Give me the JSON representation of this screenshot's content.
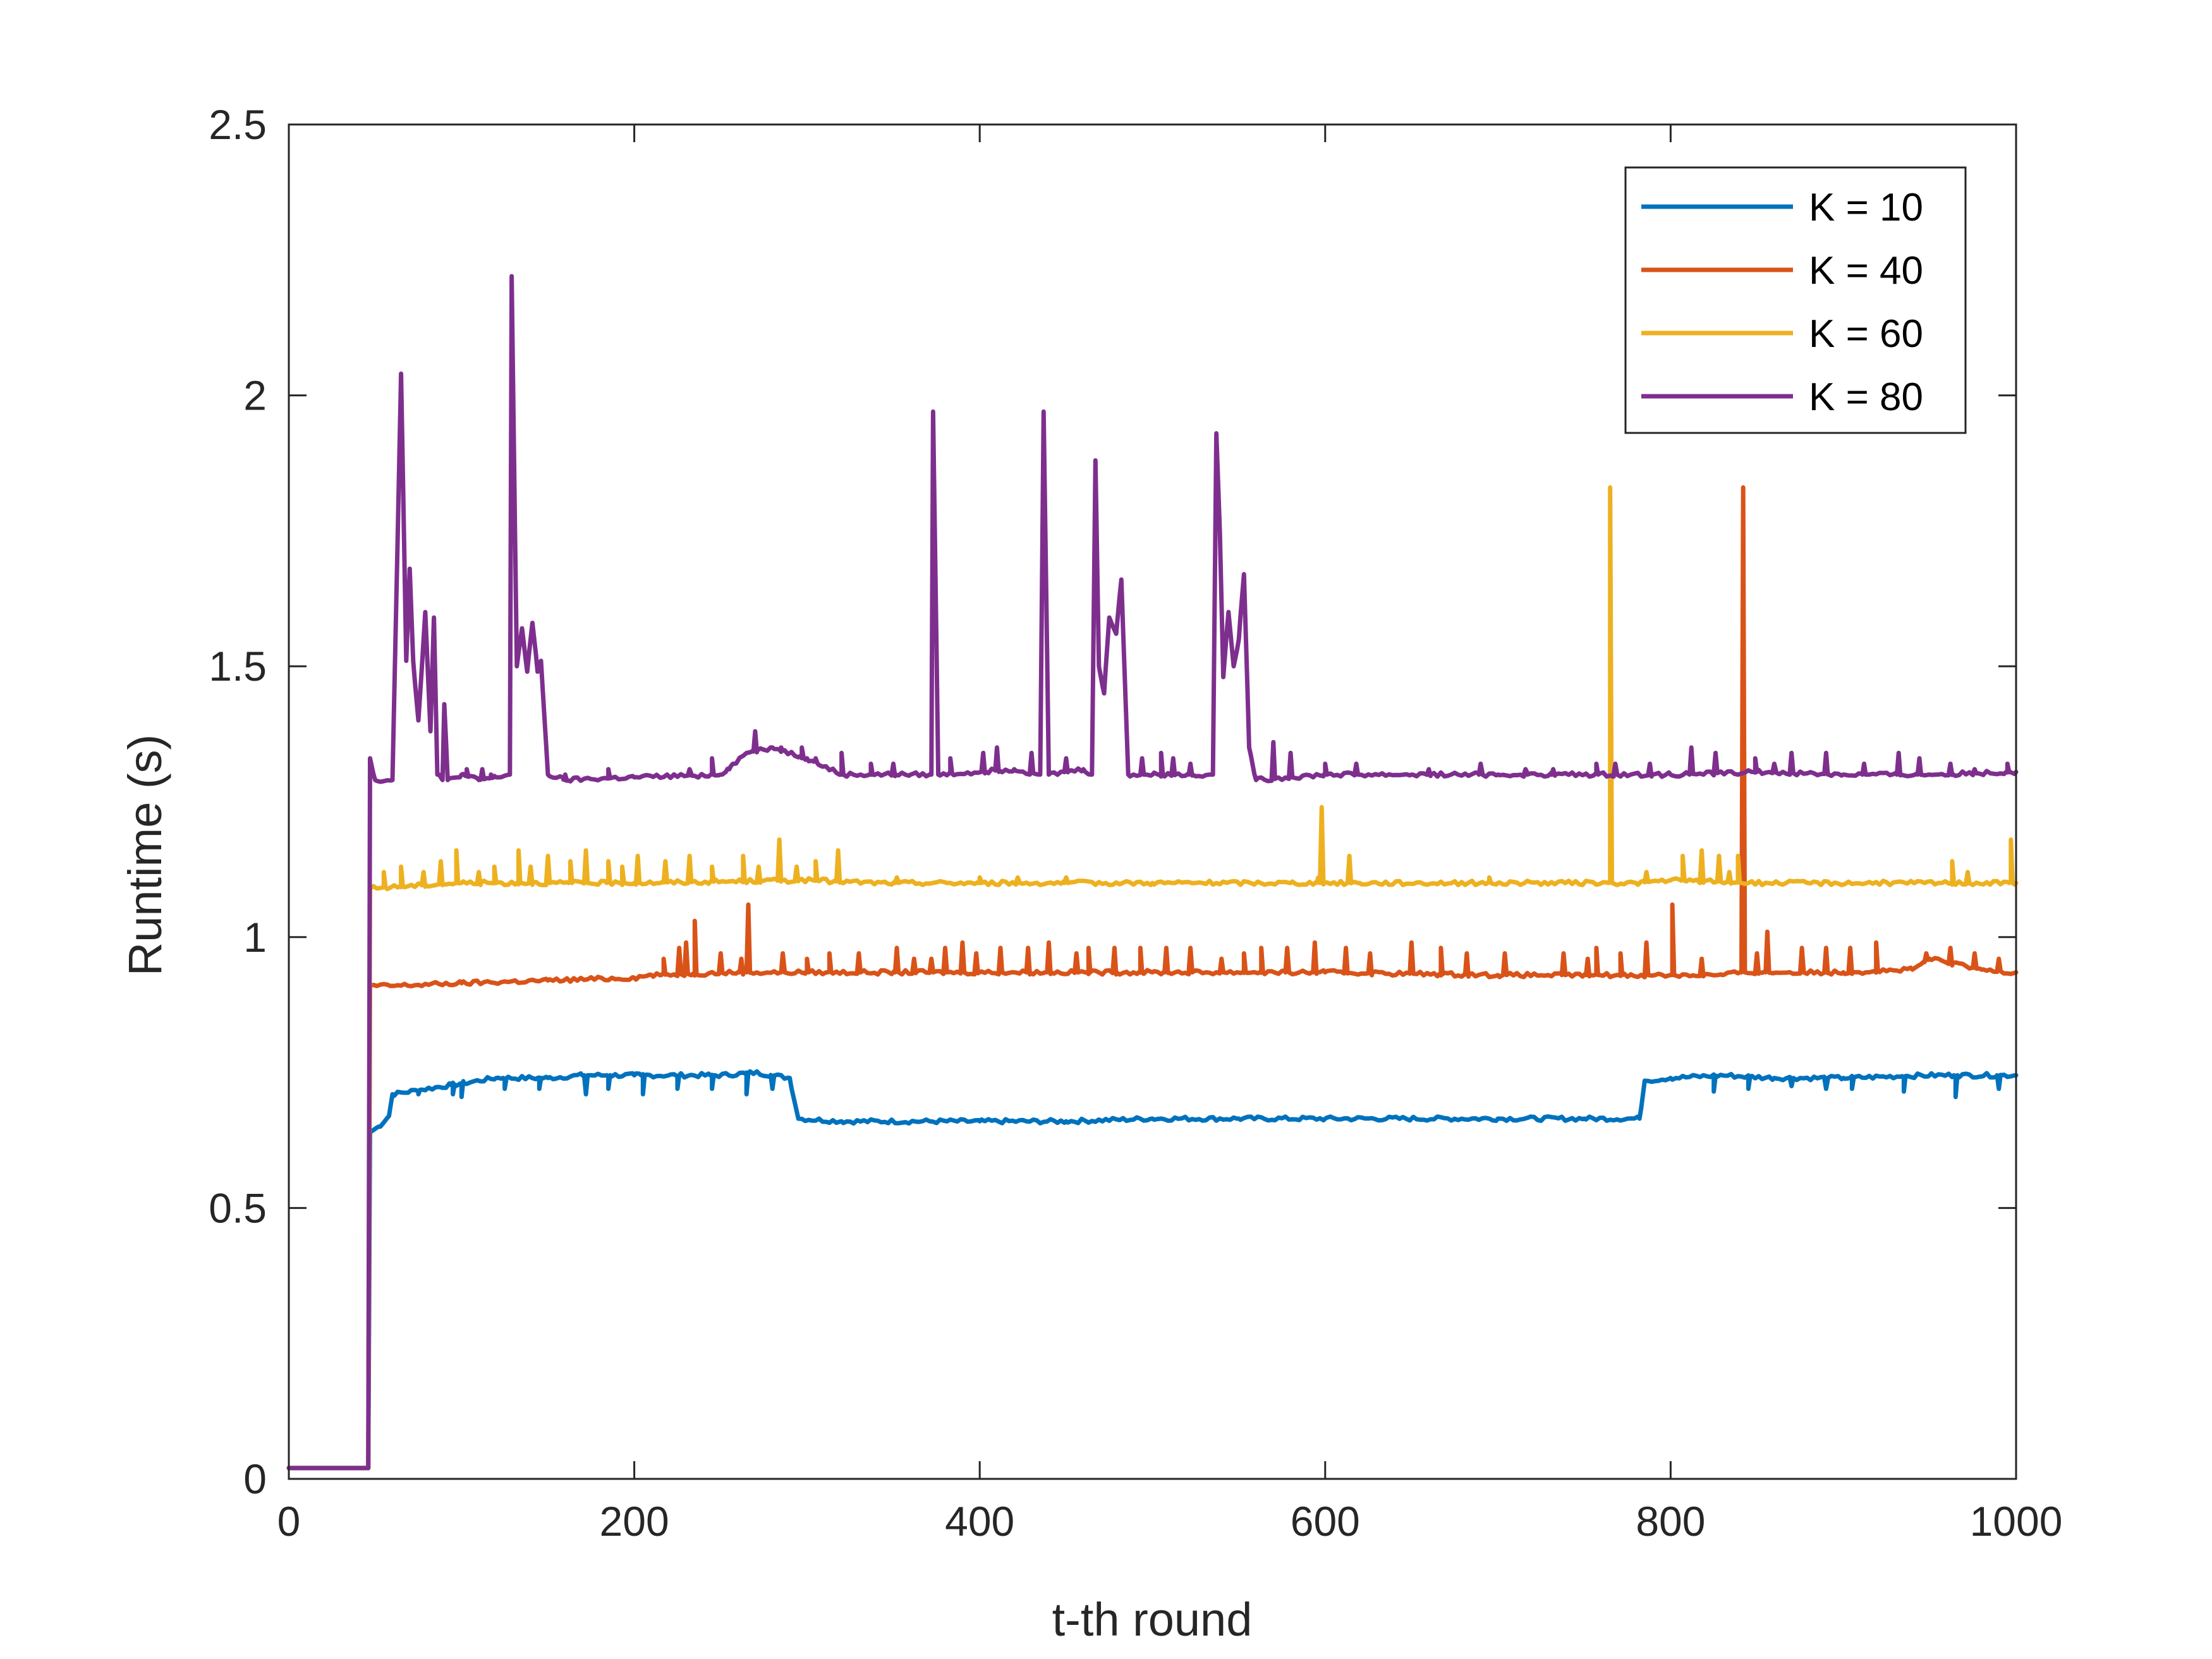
{
  "chart_data": {
    "type": "line",
    "title": "",
    "xlabel": "t-th round",
    "ylabel": "Runtime (s)",
    "xlim": [
      0,
      1000
    ],
    "ylim": [
      0,
      2.5
    ],
    "xticks": [
      0,
      200,
      400,
      600,
      800,
      1000
    ],
    "yticks": [
      0,
      0.5,
      1,
      1.5,
      2,
      2.5
    ],
    "xtick_labels": [
      "0",
      "200",
      "400",
      "600",
      "800",
      "1000"
    ],
    "ytick_labels": [
      "0",
      "0.5",
      "1",
      "1.5",
      "2",
      "2.5"
    ],
    "grid": false,
    "legend_position": "top-right",
    "series": [
      {
        "name": "K = 10",
        "color": "#0072BD",
        "points": [
          [
            0,
            0.02
          ],
          [
            46,
            0.02
          ],
          [
            47,
            0.64
          ],
          [
            52,
            0.65
          ],
          [
            58,
            0.67
          ],
          [
            60,
            0.71
          ],
          [
            80,
            0.72
          ],
          [
            100,
            0.73
          ],
          [
            120,
            0.74
          ],
          [
            150,
            0.74
          ],
          [
            170,
            0.745
          ],
          [
            200,
            0.745
          ],
          [
            220,
            0.745
          ],
          [
            250,
            0.745
          ],
          [
            270,
            0.75
          ],
          [
            290,
            0.74
          ],
          [
            295,
            0.665
          ],
          [
            320,
            0.66
          ],
          [
            400,
            0.66
          ],
          [
            450,
            0.66
          ],
          [
            500,
            0.665
          ],
          [
            550,
            0.665
          ],
          [
            600,
            0.665
          ],
          [
            650,
            0.665
          ],
          [
            700,
            0.665
          ],
          [
            750,
            0.665
          ],
          [
            782,
            0.665
          ],
          [
            785,
            0.735
          ],
          [
            800,
            0.74
          ],
          [
            830,
            0.745
          ],
          [
            860,
            0.74
          ],
          [
            900,
            0.74
          ],
          [
            950,
            0.745
          ],
          [
            1000,
            0.745
          ]
        ],
        "dips": [
          [
            75,
            0.71
          ],
          [
            95,
            0.71
          ],
          [
            100,
            0.705
          ],
          [
            125,
            0.72
          ],
          [
            145,
            0.72
          ],
          [
            172,
            0.71
          ],
          [
            185,
            0.72
          ],
          [
            205,
            0.71
          ],
          [
            225,
            0.72
          ],
          [
            245,
            0.72
          ],
          [
            265,
            0.71
          ],
          [
            280,
            0.72
          ],
          [
            825,
            0.715
          ],
          [
            845,
            0.72
          ],
          [
            870,
            0.725
          ],
          [
            890,
            0.72
          ],
          [
            905,
            0.72
          ],
          [
            935,
            0.715
          ],
          [
            965,
            0.705
          ],
          [
            990,
            0.72
          ]
        ]
      },
      {
        "name": "K = 40",
        "color": "#D95319",
        "points": [
          [
            0,
            0.02
          ],
          [
            46,
            0.02
          ],
          [
            47,
            0.91
          ],
          [
            60,
            0.91
          ],
          [
            100,
            0.915
          ],
          [
            150,
            0.92
          ],
          [
            200,
            0.925
          ],
          [
            210,
            0.93
          ],
          [
            260,
            0.935
          ],
          [
            300,
            0.935
          ],
          [
            400,
            0.935
          ],
          [
            500,
            0.935
          ],
          [
            600,
            0.935
          ],
          [
            700,
            0.93
          ],
          [
            800,
            0.93
          ],
          [
            830,
            0.93
          ],
          [
            840,
            0.935
          ],
          [
            900,
            0.935
          ],
          [
            940,
            0.94
          ],
          [
            950,
            0.96
          ],
          [
            980,
            0.94
          ],
          [
            1000,
            0.935
          ]
        ],
        "spikes": [
          [
            217,
            0.96
          ],
          [
            226,
            0.98
          ],
          [
            230,
            0.99
          ],
          [
            235,
            1.03
          ],
          [
            250,
            0.97
          ],
          [
            262,
            0.96
          ],
          [
            266,
            1.06
          ],
          [
            286,
            0.97
          ],
          [
            300,
            0.96
          ],
          [
            313,
            0.97
          ],
          [
            330,
            0.97
          ],
          [
            352,
            0.98
          ],
          [
            362,
            0.96
          ],
          [
            372,
            0.96
          ],
          [
            380,
            0.98
          ],
          [
            390,
            0.99
          ],
          [
            398,
            0.97
          ],
          [
            412,
            0.98
          ],
          [
            428,
            0.98
          ],
          [
            440,
            0.99
          ],
          [
            456,
            0.97
          ],
          [
            463,
            0.98
          ],
          [
            478,
            0.98
          ],
          [
            493,
            0.98
          ],
          [
            508,
            0.98
          ],
          [
            522,
            0.98
          ],
          [
            540,
            0.96
          ],
          [
            553,
            0.97
          ],
          [
            563,
            0.98
          ],
          [
            578,
            0.98
          ],
          [
            594,
            0.99
          ],
          [
            612,
            0.98
          ],
          [
            626,
            0.97
          ],
          [
            650,
            0.99
          ],
          [
            667,
            0.98
          ],
          [
            682,
            0.97
          ],
          [
            704,
            0.97
          ],
          [
            738,
            0.97
          ],
          [
            752,
            0.96
          ],
          [
            757,
            0.98
          ],
          [
            771,
            0.97
          ],
          [
            786,
            0.99
          ],
          [
            801,
            1.06
          ],
          [
            818,
            0.96
          ],
          [
            842,
            1.83
          ],
          [
            850,
            0.97
          ],
          [
            856,
            1.01
          ],
          [
            876,
            0.98
          ],
          [
            890,
            0.98
          ],
          [
            904,
            0.98
          ],
          [
            919,
            0.99
          ],
          [
            948,
            0.97
          ],
          [
            962,
            0.98
          ],
          [
            976,
            0.97
          ],
          [
            990,
            0.96
          ]
        ]
      },
      {
        "name": "K = 60",
        "color": "#EDB120",
        "points": [
          [
            0,
            0.02
          ],
          [
            46,
            0.02
          ],
          [
            47,
            1.09
          ],
          [
            100,
            1.1
          ],
          [
            200,
            1.1
          ],
          [
            300,
            1.105
          ],
          [
            340,
            1.1
          ],
          [
            400,
            1.1
          ],
          [
            500,
            1.1
          ],
          [
            580,
            1.1
          ],
          [
            620,
            1.1
          ],
          [
            700,
            1.1
          ],
          [
            780,
            1.1
          ],
          [
            800,
            1.105
          ],
          [
            850,
            1.1
          ],
          [
            1000,
            1.1
          ]
        ],
        "spikes": [
          [
            55,
            1.12
          ],
          [
            65,
            1.13
          ],
          [
            78,
            1.12
          ],
          [
            88,
            1.14
          ],
          [
            97,
            1.16
          ],
          [
            110,
            1.12
          ],
          [
            119,
            1.13
          ],
          [
            133,
            1.16
          ],
          [
            140,
            1.13
          ],
          [
            150,
            1.15
          ],
          [
            163,
            1.14
          ],
          [
            172,
            1.16
          ],
          [
            185,
            1.14
          ],
          [
            193,
            1.13
          ],
          [
            202,
            1.15
          ],
          [
            218,
            1.14
          ],
          [
            232,
            1.15
          ],
          [
            245,
            1.13
          ],
          [
            263,
            1.15
          ],
          [
            272,
            1.13
          ],
          [
            284,
            1.18
          ],
          [
            294,
            1.13
          ],
          [
            305,
            1.14
          ],
          [
            318,
            1.16
          ],
          [
            352,
            1.11
          ],
          [
            400,
            1.11
          ],
          [
            422,
            1.11
          ],
          [
            450,
            1.11
          ],
          [
            596,
            1.11
          ],
          [
            598,
            1.24
          ],
          [
            614,
            1.15
          ],
          [
            695,
            1.11
          ],
          [
            765,
            1.83
          ],
          [
            786,
            1.12
          ],
          [
            807,
            1.15
          ],
          [
            818,
            1.16
          ],
          [
            828,
            1.15
          ],
          [
            834,
            1.12
          ],
          [
            839,
            1.15
          ],
          [
            963,
            1.14
          ],
          [
            972,
            1.12
          ],
          [
            997,
            1.18
          ]
        ]
      },
      {
        "name": "K = 80",
        "color": "#7E2F8E",
        "points": [
          [
            0,
            0.02
          ],
          [
            46,
            0.02
          ],
          [
            47,
            1.33
          ],
          [
            50,
            1.29
          ],
          [
            60,
            1.29
          ],
          [
            65,
            2.04
          ],
          [
            68,
            1.51
          ],
          [
            70,
            1.68
          ],
          [
            72,
            1.51
          ],
          [
            75,
            1.4
          ],
          [
            79,
            1.6
          ],
          [
            82,
            1.38
          ],
          [
            84,
            1.59
          ],
          [
            86,
            1.3
          ],
          [
            89,
            1.29
          ],
          [
            90,
            1.43
          ],
          [
            92,
            1.29
          ],
          [
            100,
            1.3
          ],
          [
            110,
            1.29
          ],
          [
            120,
            1.295
          ],
          [
            128,
            1.3
          ],
          [
            129,
            2.22
          ],
          [
            132,
            1.5
          ],
          [
            135,
            1.57
          ],
          [
            138,
            1.49
          ],
          [
            141,
            1.58
          ],
          [
            144,
            1.49
          ],
          [
            146,
            1.51
          ],
          [
            150,
            1.3
          ],
          [
            160,
            1.29
          ],
          [
            200,
            1.295
          ],
          [
            250,
            1.3
          ],
          [
            265,
            1.34
          ],
          [
            280,
            1.35
          ],
          [
            300,
            1.33
          ],
          [
            320,
            1.3
          ],
          [
            360,
            1.3
          ],
          [
            372,
            1.3
          ],
          [
            373,
            1.97
          ],
          [
            376,
            1.3
          ],
          [
            420,
            1.31
          ],
          [
            435,
            1.3
          ],
          [
            437,
            1.97
          ],
          [
            440,
            1.3
          ],
          [
            460,
            1.31
          ],
          [
            465,
            1.3
          ],
          [
            467,
            1.88
          ],
          [
            469,
            1.5
          ],
          [
            472,
            1.45
          ],
          [
            475,
            1.59
          ],
          [
            479,
            1.56
          ],
          [
            482,
            1.66
          ],
          [
            486,
            1.3
          ],
          [
            500,
            1.3
          ],
          [
            520,
            1.3
          ],
          [
            535,
            1.3
          ],
          [
            537,
            1.93
          ],
          [
            539,
            1.75
          ],
          [
            541,
            1.48
          ],
          [
            544,
            1.6
          ],
          [
            547,
            1.5
          ],
          [
            550,
            1.55
          ],
          [
            553,
            1.67
          ],
          [
            556,
            1.35
          ],
          [
            560,
            1.29
          ],
          [
            600,
            1.3
          ],
          [
            650,
            1.3
          ],
          [
            700,
            1.3
          ],
          [
            750,
            1.3
          ],
          [
            800,
            1.3
          ],
          [
            850,
            1.305
          ],
          [
            900,
            1.3
          ],
          [
            950,
            1.3
          ],
          [
            1000,
            1.305
          ]
        ],
        "spikes": [
          [
            103,
            1.31
          ],
          [
            112,
            1.31
          ],
          [
            117,
            1.3
          ],
          [
            160,
            1.3
          ],
          [
            185,
            1.31
          ],
          [
            232,
            1.31
          ],
          [
            245,
            1.33
          ],
          [
            255,
            1.31
          ],
          [
            270,
            1.38
          ],
          [
            285,
            1.35
          ],
          [
            297,
            1.35
          ],
          [
            305,
            1.33
          ],
          [
            320,
            1.34
          ],
          [
            337,
            1.32
          ],
          [
            350,
            1.32
          ],
          [
            383,
            1.33
          ],
          [
            402,
            1.34
          ],
          [
            410,
            1.35
          ],
          [
            430,
            1.34
          ],
          [
            450,
            1.33
          ],
          [
            494,
            1.33
          ],
          [
            505,
            1.34
          ],
          [
            512,
            1.33
          ],
          [
            522,
            1.32
          ],
          [
            570,
            1.36
          ],
          [
            580,
            1.34
          ],
          [
            600,
            1.32
          ],
          [
            618,
            1.32
          ],
          [
            660,
            1.31
          ],
          [
            690,
            1.32
          ],
          [
            716,
            1.31
          ],
          [
            732,
            1.31
          ],
          [
            757,
            1.32
          ],
          [
            768,
            1.32
          ],
          [
            788,
            1.32
          ],
          [
            812,
            1.35
          ],
          [
            826,
            1.34
          ],
          [
            849,
            1.33
          ],
          [
            860,
            1.32
          ],
          [
            870,
            1.34
          ],
          [
            890,
            1.34
          ],
          [
            912,
            1.32
          ],
          [
            932,
            1.34
          ],
          [
            944,
            1.33
          ],
          [
            962,
            1.32
          ],
          [
            976,
            1.31
          ],
          [
            995,
            1.32
          ]
        ]
      }
    ]
  }
}
